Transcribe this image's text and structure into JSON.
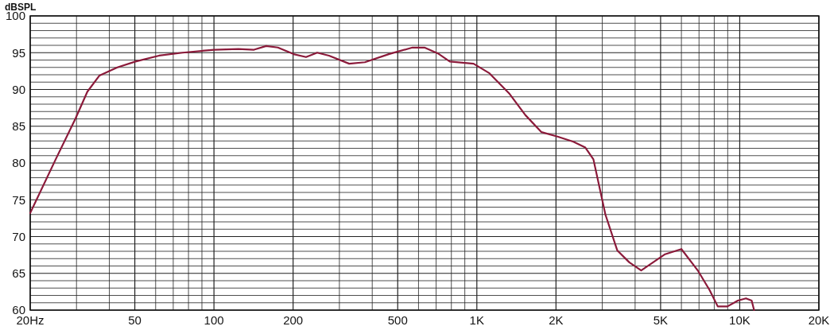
{
  "chart_data": {
    "type": "line",
    "ylabel": "dBSPL",
    "log": "x",
    "grid": true,
    "marker": "none",
    "line_style": "solid",
    "xlim": [
      20,
      20000
    ],
    "ylim": [
      60,
      100
    ],
    "xticks": [
      {
        "value": 20,
        "label": "20Hz"
      },
      {
        "value": 30,
        "label": null
      },
      {
        "value": 40,
        "label": null
      },
      50,
      {
        "value": 60,
        "label": null
      },
      {
        "value": 70,
        "label": null
      },
      {
        "value": 80,
        "label": null
      },
      {
        "value": 90,
        "label": null
      },
      100,
      200,
      {
        "value": 300,
        "label": null
      },
      {
        "value": 400,
        "label": null
      },
      500,
      {
        "value": 600,
        "label": null
      },
      {
        "value": 700,
        "label": null
      },
      {
        "value": 800,
        "label": null
      },
      {
        "value": 900,
        "label": null
      },
      {
        "value": 1000,
        "label": "1K"
      },
      {
        "value": 2000,
        "label": "2K"
      },
      {
        "value": 3000,
        "label": null
      },
      {
        "value": 4000,
        "label": null
      },
      {
        "value": 5000,
        "label": "5K"
      },
      {
        "value": 6000,
        "label": null
      },
      {
        "value": 7000,
        "label": null
      },
      {
        "value": 8000,
        "label": null
      },
      {
        "value": 9000,
        "label": null
      },
      {
        "value": 10000,
        "label": "10K"
      },
      {
        "value": 20000,
        "label": "20K"
      }
    ],
    "yticks": [
      60,
      {
        "value": 61,
        "label": null
      },
      {
        "value": 62,
        "label": null
      },
      {
        "value": 63,
        "label": null
      },
      {
        "value": 64,
        "label": null
      },
      65,
      {
        "value": 66,
        "label": null
      },
      {
        "value": 67,
        "label": null
      },
      {
        "value": 68,
        "label": null
      },
      {
        "value": 69,
        "label": null
      },
      70,
      {
        "value": 71,
        "label": null
      },
      {
        "value": 72,
        "label": null
      },
      {
        "value": 73,
        "label": null
      },
      {
        "value": 74,
        "label": null
      },
      75,
      {
        "value": 76,
        "label": null
      },
      {
        "value": 77,
        "label": null
      },
      {
        "value": 78,
        "label": null
      },
      {
        "value": 79,
        "label": null
      },
      80,
      {
        "value": 81,
        "label": null
      },
      {
        "value": 82,
        "label": null
      },
      {
        "value": 83,
        "label": null
      },
      {
        "value": 84,
        "label": null
      },
      85,
      {
        "value": 86,
        "label": null
      },
      {
        "value": 87,
        "label": null
      },
      {
        "value": 88,
        "label": null
      },
      {
        "value": 89,
        "label": null
      },
      90,
      {
        "value": 91,
        "label": null
      },
      {
        "value": 92,
        "label": null
      },
      {
        "value": 93,
        "label": null
      },
      {
        "value": 94,
        "label": null
      },
      95,
      {
        "value": 96,
        "label": null
      },
      {
        "value": 97,
        "label": null
      },
      {
        "value": 98,
        "label": null
      },
      {
        "value": 99,
        "label": null
      },
      100
    ],
    "series": [
      {
        "color": "#8b1a3a",
        "x": [
          20,
          25,
          29.7,
          33,
          36.7,
          42.9,
          50.3,
          61.8,
          76,
          100,
          124,
          142,
          158,
          175,
          201,
          224,
          247,
          274,
          327,
          375,
          462,
          569,
          632,
          711,
          789,
          972,
          1117,
          1332,
          1531,
          1762,
          2027,
          2330,
          2587,
          2776,
          3083,
          3423,
          3800,
          4218,
          4684,
          5200,
          6000,
          6923,
          7686,
          8250,
          8980,
          9840,
          10560,
          11100,
          11340
        ],
        "values": [
          73.2,
          80.5,
          86,
          89.7,
          91.9,
          93,
          93.8,
          94.6,
          95,
          95.4,
          95.5,
          95.4,
          95.9,
          95.7,
          94.8,
          94.4,
          95,
          94.6,
          93.5,
          93.7,
          94.8,
          95.7,
          95.7,
          94.9,
          93.8,
          93.5,
          92.2,
          89.4,
          86.5,
          84.2,
          83.6,
          82.9,
          82.1,
          80.5,
          73,
          68.1,
          66.5,
          65.4,
          66.5,
          67.6,
          68.3,
          65.4,
          62.7,
          60.5,
          60.5,
          61.3,
          61.6,
          61.3,
          60
        ]
      }
    ]
  }
}
